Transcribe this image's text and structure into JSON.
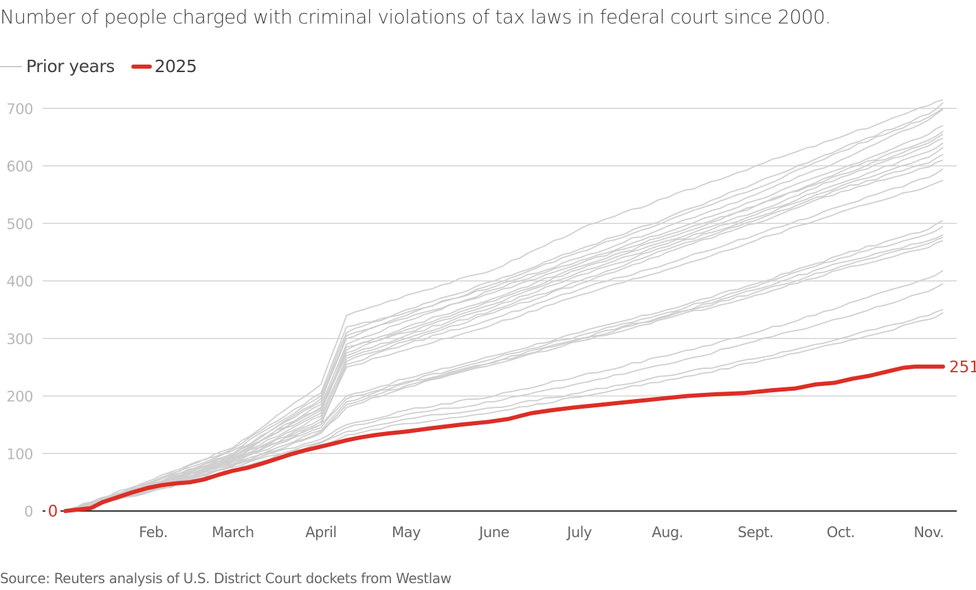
{
  "title": "Number of people charged with criminal violations of tax laws in federal court since 2000.",
  "legend": {
    "items": [
      {
        "label": "Prior years",
        "color": "#cccccc"
      },
      {
        "label": "2025",
        "color": "#dc2e26"
      }
    ]
  },
  "source": "Source: Reuters analysis of U.S. District Court dockets from Westlaw",
  "chart_data": {
    "type": "line",
    "title": "Number of people charged with criminal violations of tax laws in federal court since 2000.",
    "xlabel": "",
    "ylabel": "",
    "x_unit": "day of year",
    "xlim": [
      1,
      310
    ],
    "ylim": [
      0,
      720
    ],
    "grid": true,
    "legend_position": "top-left",
    "y_ticks": [
      0,
      100,
      200,
      300,
      400,
      500,
      600,
      700
    ],
    "x_ticks": [
      {
        "label": "Feb.",
        "day": 32
      },
      {
        "label": "March",
        "day": 60
      },
      {
        "label": "April",
        "day": 91
      },
      {
        "label": "May",
        "day": 121
      },
      {
        "label": "June",
        "day": 152
      },
      {
        "label": "July",
        "day": 182
      },
      {
        "label": "Aug.",
        "day": 213
      },
      {
        "label": "Sept.",
        "day": 244
      },
      {
        "label": "Oct.",
        "day": 274
      },
      {
        "label": "Nov.",
        "day": 305
      }
    ],
    "annotations": [
      {
        "text": "0",
        "series": "2025",
        "at": "start",
        "color": "#dc2e26"
      },
      {
        "text": "251",
        "series": "2025",
        "at": "end",
        "color": "#dc2e26"
      }
    ],
    "series_2025": {
      "name": "2025",
      "color": "#dc2e26",
      "x": [
        1,
        10,
        14,
        20,
        25,
        30,
        35,
        40,
        45,
        50,
        55,
        60,
        65,
        70,
        75,
        80,
        85,
        91,
        96,
        100,
        105,
        110,
        115,
        121,
        130,
        140,
        150,
        157,
        165,
        172,
        180,
        190,
        200,
        210,
        220,
        230,
        240,
        250,
        258,
        265,
        272,
        278,
        284,
        290,
        296,
        300,
        305,
        310
      ],
      "y": [
        0,
        5,
        15,
        25,
        33,
        40,
        45,
        48,
        50,
        55,
        63,
        70,
        75,
        82,
        90,
        98,
        105,
        112,
        118,
        123,
        128,
        132,
        135,
        138,
        144,
        150,
        155,
        160,
        170,
        175,
        180,
        185,
        190,
        195,
        200,
        203,
        205,
        210,
        213,
        220,
        223,
        230,
        235,
        242,
        249,
        251,
        251,
        251
      ]
    },
    "prior_years": [
      {
        "name": "prior-1",
        "x": [
          1,
          32,
          60,
          91,
          100,
          121,
          152,
          182,
          213,
          244,
          274,
          305,
          310
        ],
        "y": [
          0,
          55,
          110,
          220,
          340,
          375,
          420,
          490,
          545,
          600,
          650,
          705,
          715
        ]
      },
      {
        "name": "prior-2",
        "x": [
          1,
          32,
          60,
          91,
          100,
          121,
          152,
          182,
          213,
          244,
          274,
          305,
          310
        ],
        "y": [
          0,
          50,
          105,
          200,
          310,
          350,
          400,
          455,
          510,
          570,
          630,
          690,
          710
        ]
      },
      {
        "name": "prior-3",
        "x": [
          1,
          32,
          60,
          91,
          100,
          121,
          152,
          182,
          213,
          244,
          274,
          305,
          310
        ],
        "y": [
          0,
          48,
          100,
          190,
          300,
          340,
          395,
          450,
          505,
          560,
          625,
          685,
          700
        ]
      },
      {
        "name": "prior-4",
        "x": [
          1,
          32,
          60,
          91,
          100,
          121,
          152,
          182,
          213,
          244,
          274,
          305,
          310
        ],
        "y": [
          0,
          52,
          108,
          205,
          320,
          345,
          390,
          440,
          495,
          550,
          610,
          680,
          698
        ]
      },
      {
        "name": "prior-5",
        "x": [
          1,
          32,
          60,
          91,
          100,
          121,
          152,
          182,
          213,
          244,
          274,
          305,
          310
        ],
        "y": [
          0,
          45,
          95,
          185,
          290,
          330,
          385,
          435,
          485,
          540,
          595,
          655,
          670
        ]
      },
      {
        "name": "prior-6",
        "x": [
          1,
          32,
          60,
          91,
          100,
          121,
          152,
          182,
          213,
          244,
          274,
          305,
          310
        ],
        "y": [
          0,
          50,
          100,
          195,
          305,
          335,
          380,
          430,
          480,
          530,
          590,
          645,
          660
        ]
      },
      {
        "name": "prior-7",
        "x": [
          1,
          32,
          60,
          91,
          100,
          121,
          152,
          182,
          213,
          244,
          274,
          305,
          310
        ],
        "y": [
          0,
          47,
          98,
          180,
          280,
          320,
          370,
          425,
          475,
          530,
          585,
          640,
          655
        ]
      },
      {
        "name": "prior-8",
        "x": [
          1,
          32,
          60,
          91,
          100,
          121,
          152,
          182,
          213,
          244,
          274,
          305,
          310
        ],
        "y": [
          0,
          44,
          96,
          175,
          275,
          315,
          365,
          420,
          470,
          520,
          580,
          635,
          648
        ]
      },
      {
        "name": "prior-9",
        "x": [
          1,
          32,
          60,
          91,
          100,
          121,
          152,
          182,
          213,
          244,
          274,
          305,
          310
        ],
        "y": [
          0,
          42,
          92,
          170,
          285,
          310,
          360,
          415,
          465,
          515,
          570,
          625,
          640
        ]
      },
      {
        "name": "prior-10",
        "x": [
          1,
          32,
          60,
          91,
          100,
          121,
          152,
          182,
          213,
          244,
          274,
          305,
          310
        ],
        "y": [
          0,
          46,
          94,
          178,
          270,
          305,
          355,
          410,
          460,
          510,
          565,
          615,
          632
        ]
      },
      {
        "name": "prior-11",
        "x": [
          1,
          32,
          60,
          91,
          100,
          121,
          152,
          182,
          213,
          244,
          274,
          305,
          310
        ],
        "y": [
          0,
          40,
          90,
          165,
          265,
          300,
          350,
          400,
          455,
          505,
          560,
          605,
          620
        ]
      },
      {
        "name": "prior-12",
        "x": [
          1,
          32,
          60,
          91,
          100,
          121,
          152,
          182,
          213,
          244,
          274,
          305,
          310
        ],
        "y": [
          0,
          43,
          88,
          160,
          260,
          295,
          345,
          395,
          450,
          500,
          555,
          598,
          610
        ]
      },
      {
        "name": "prior-13",
        "x": [
          1,
          32,
          60,
          91,
          100,
          121,
          152,
          182,
          213,
          244,
          274,
          305,
          310
        ],
        "y": [
          0,
          38,
          85,
          155,
          255,
          290,
          335,
          385,
          430,
          480,
          530,
          580,
          595
        ]
      },
      {
        "name": "prior-14",
        "x": [
          1,
          32,
          60,
          91,
          100,
          121,
          152,
          182,
          213,
          244,
          274,
          305,
          310
        ],
        "y": [
          0,
          40,
          86,
          150,
          250,
          280,
          325,
          375,
          420,
          470,
          520,
          565,
          575
        ]
      },
      {
        "name": "prior-15",
        "x": [
          1,
          32,
          60,
          91,
          100,
          121,
          152,
          182,
          213,
          244,
          274,
          305,
          310
        ],
        "y": [
          0,
          45,
          90,
          150,
          200,
          230,
          270,
          310,
          350,
          395,
          445,
          490,
          505
        ]
      },
      {
        "name": "prior-16",
        "x": [
          1,
          32,
          60,
          91,
          100,
          121,
          152,
          182,
          213,
          244,
          274,
          305,
          310
        ],
        "y": [
          0,
          42,
          85,
          145,
          195,
          225,
          265,
          305,
          345,
          390,
          440,
          482,
          495
        ]
      },
      {
        "name": "prior-17",
        "x": [
          1,
          32,
          60,
          91,
          100,
          121,
          152,
          182,
          213,
          244,
          274,
          305,
          310
        ],
        "y": [
          0,
          40,
          82,
          140,
          190,
          222,
          260,
          300,
          340,
          385,
          432,
          470,
          480
        ]
      },
      {
        "name": "prior-18",
        "x": [
          1,
          32,
          60,
          91,
          100,
          121,
          152,
          182,
          213,
          244,
          274,
          305,
          310
        ],
        "y": [
          0,
          38,
          80,
          138,
          185,
          218,
          258,
          298,
          338,
          380,
          425,
          465,
          476
        ]
      },
      {
        "name": "prior-19",
        "x": [
          1,
          32,
          60,
          91,
          100,
          121,
          152,
          182,
          213,
          244,
          274,
          305,
          310
        ],
        "y": [
          0,
          36,
          78,
          135,
          180,
          215,
          255,
          295,
          335,
          375,
          420,
          458,
          470
        ]
      },
      {
        "name": "prior-20",
        "x": [
          1,
          32,
          60,
          91,
          100,
          121,
          152,
          182,
          213,
          244,
          274,
          305,
          310
        ],
        "y": [
          0,
          40,
          80,
          125,
          150,
          175,
          200,
          235,
          270,
          310,
          355,
          405,
          418
        ]
      },
      {
        "name": "prior-21",
        "x": [
          1,
          32,
          60,
          91,
          100,
          121,
          152,
          182,
          213,
          244,
          274,
          305,
          310
        ],
        "y": [
          0,
          38,
          76,
          120,
          145,
          168,
          190,
          222,
          255,
          295,
          335,
          382,
          395
        ]
      },
      {
        "name": "prior-22",
        "x": [
          1,
          32,
          60,
          91,
          100,
          121,
          152,
          182,
          213,
          244,
          274,
          305,
          310
        ],
        "y": [
          0,
          36,
          72,
          118,
          138,
          160,
          180,
          205,
          235,
          265,
          300,
          340,
          350
        ]
      },
      {
        "name": "prior-23",
        "x": [
          1,
          32,
          60,
          91,
          100,
          121,
          152,
          182,
          213,
          244,
          274,
          305,
          310
        ],
        "y": [
          0,
          35,
          70,
          112,
          132,
          152,
          172,
          198,
          228,
          258,
          292,
          333,
          345
        ]
      }
    ]
  }
}
